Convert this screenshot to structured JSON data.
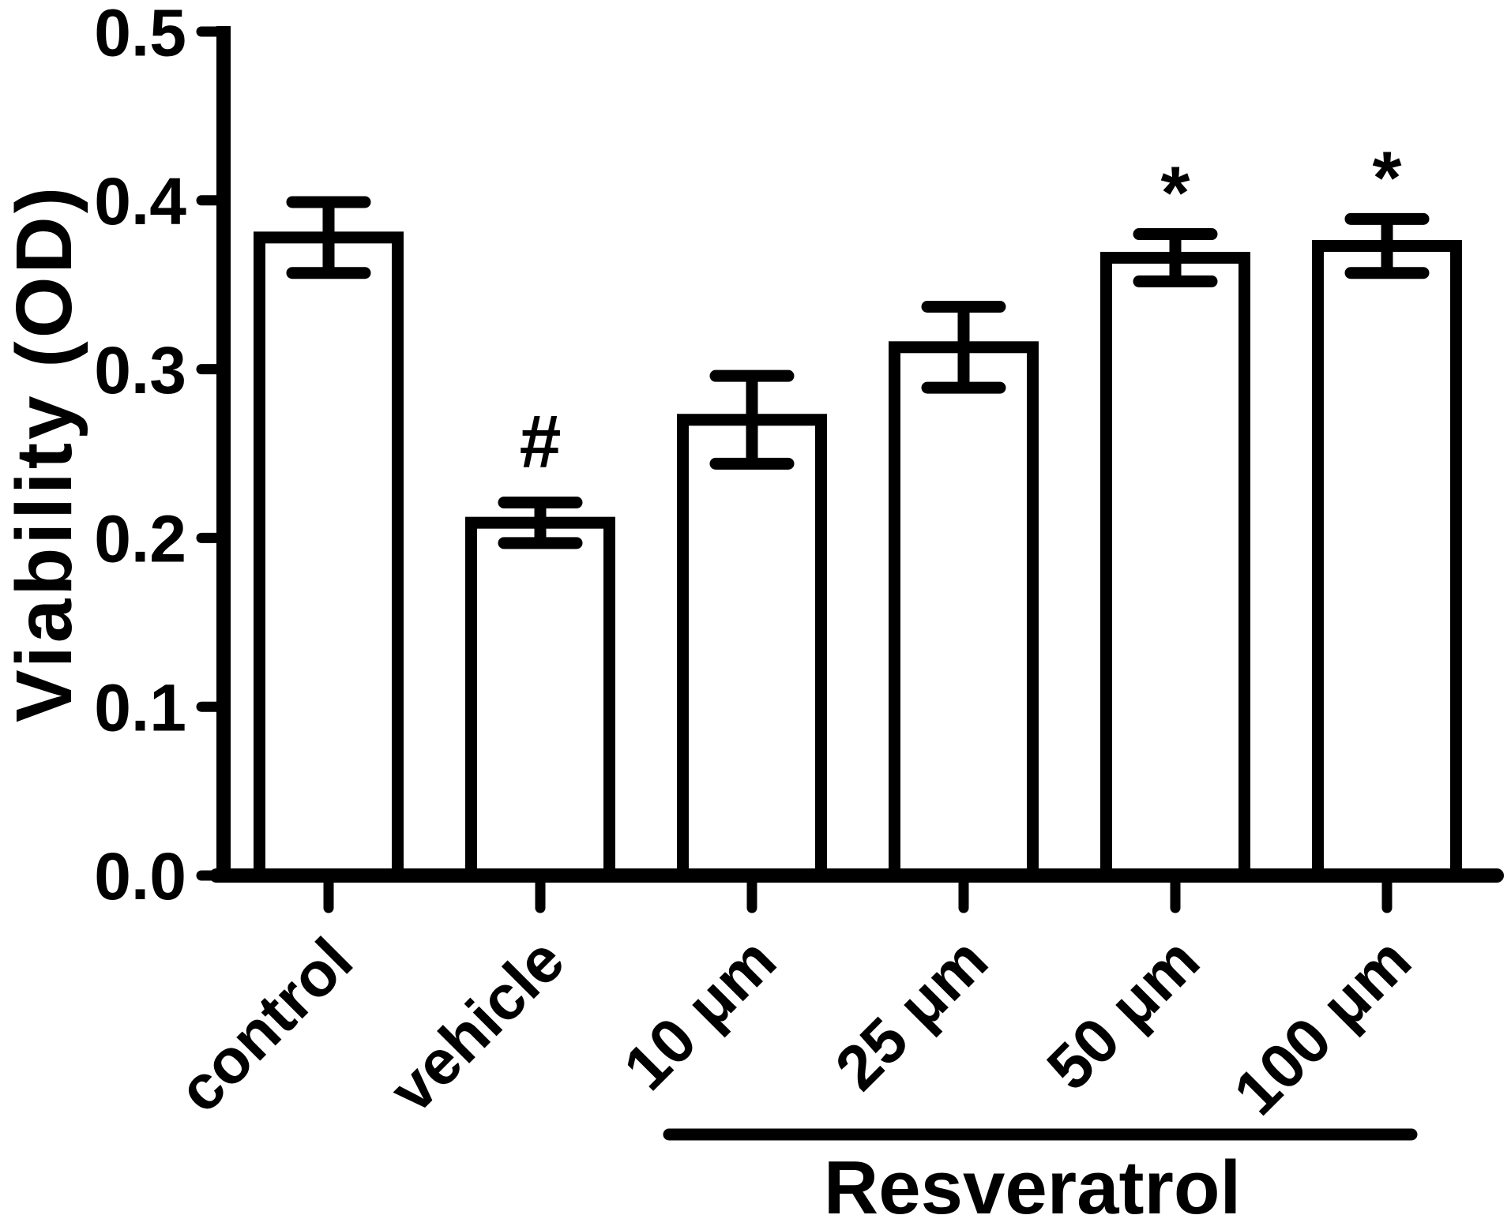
{
  "chart_data": {
    "type": "bar",
    "title": "",
    "ylabel": "Viability (OD)",
    "xlabel": "",
    "ylim": [
      0,
      0.5
    ],
    "yticks": [
      "0.0",
      "0.1",
      "0.2",
      "0.3",
      "0.4",
      "0.5"
    ],
    "categories": [
      "control",
      "vehicle",
      "10 μm",
      "25 μm",
      "50 μm",
      "100 μm"
    ],
    "values": [
      0.378,
      0.209,
      0.27,
      0.313,
      0.366,
      0.373
    ],
    "errors": [
      0.021,
      0.012,
      0.026,
      0.024,
      0.014,
      0.016
    ],
    "annotations": [
      "",
      "#",
      "",
      "",
      "*",
      "*"
    ],
    "group_label": {
      "text": "Resveratrol",
      "from_category": "10 μm",
      "to_category": "100 μm"
    },
    "grid": false,
    "legend": null,
    "bar_fill": "#ffffff",
    "stroke_color": "#000000",
    "background_color": "#ffffff"
  }
}
